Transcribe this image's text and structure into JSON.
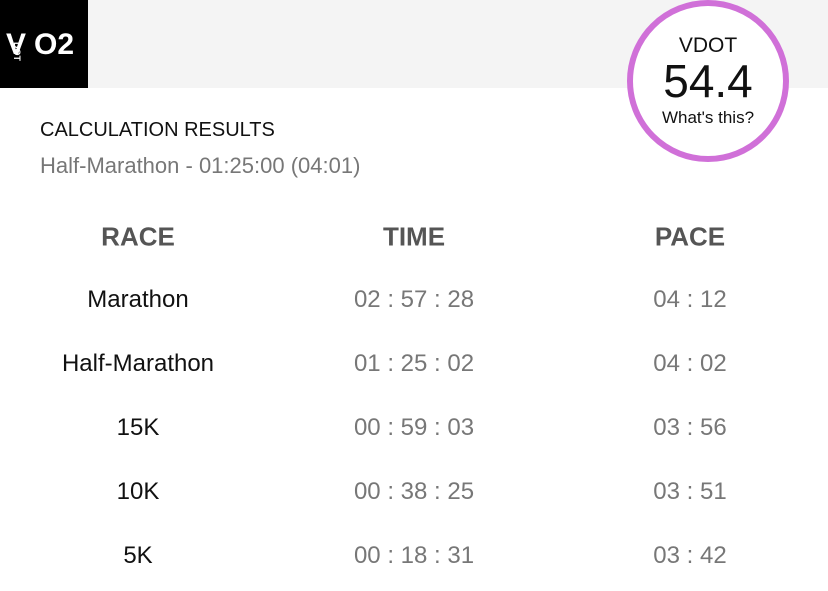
{
  "logo": {
    "v": "V",
    "dot": "DOT",
    "o2": "O2"
  },
  "badge": {
    "label": "VDOT",
    "value": "54.4",
    "link": "What's this?"
  },
  "results": {
    "title": "CALCULATION RESULTS",
    "subtitle": "Half-Marathon - 01:25:00 (04:01)"
  },
  "table": {
    "headers": [
      "RACE",
      "TIME",
      "PACE"
    ],
    "rows": [
      [
        "Marathon",
        "02 : 57 : 28",
        "04 : 12"
      ],
      [
        "Half-Marathon",
        "01 : 25 : 02",
        "04 : 02"
      ],
      [
        "15K",
        "00 : 59 : 03",
        "03 : 56"
      ],
      [
        "10K",
        "00 : 38 : 25",
        "03 : 51"
      ],
      [
        "5K",
        "00 : 18 : 31",
        "03 : 42"
      ]
    ]
  }
}
